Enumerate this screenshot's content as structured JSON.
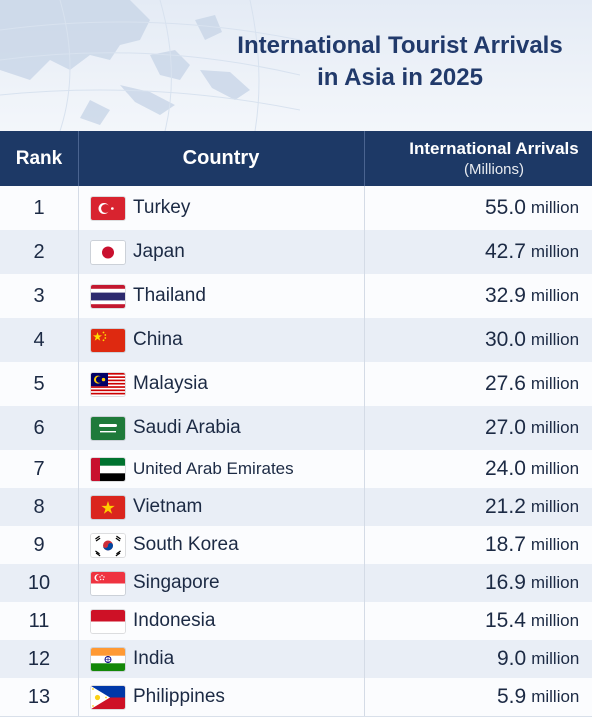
{
  "header": {
    "title_line1": "International Tourist Arrivals",
    "title_line2": "in Asia in 2025"
  },
  "table": {
    "columns": {
      "rank": "Rank",
      "country": "Country",
      "arrivals": "International Arrivals",
      "arrivals_unit": "(Millions)"
    },
    "rows": [
      {
        "rank": "1",
        "country": "Turkey",
        "value": "55.0",
        "unit": "million",
        "flag": "turkey-flag-icon"
      },
      {
        "rank": "2",
        "country": "Japan",
        "value": "42.7",
        "unit": "million",
        "flag": "japan-flag-icon"
      },
      {
        "rank": "3",
        "country": "Thailand",
        "value": "32.9",
        "unit": "million",
        "flag": "thailand-flag-icon"
      },
      {
        "rank": "4",
        "country": "China",
        "value": "30.0",
        "unit": "million",
        "flag": "china-flag-icon"
      },
      {
        "rank": "5",
        "country": "Malaysia",
        "value": "27.6",
        "unit": "million",
        "flag": "malaysia-flag-icon"
      },
      {
        "rank": "6",
        "country": "Saudi Arabia",
        "value": "27.0",
        "unit": "million",
        "flag": "saudi-arabia-flag-icon"
      },
      {
        "rank": "7",
        "country": "United Arab Emirates",
        "value": "24.0",
        "unit": "million",
        "flag": "uae-flag-icon"
      },
      {
        "rank": "8",
        "country": "Vietnam",
        "value": "21.2",
        "unit": "million",
        "flag": "vietnam-flag-icon"
      },
      {
        "rank": "9",
        "country": "South Korea",
        "value": "18.7",
        "unit": "million",
        "flag": "south-korea-flag-icon"
      },
      {
        "rank": "10",
        "country": "Singapore",
        "value": "16.9",
        "unit": "million",
        "flag": "singapore-flag-icon"
      },
      {
        "rank": "11",
        "country": "Indonesia",
        "value": "15.4",
        "unit": "million",
        "flag": "indonesia-flag-icon"
      },
      {
        "rank": "12",
        "country": "India",
        "value": "9.0",
        "unit": "million",
        "flag": "india-flag-icon"
      },
      {
        "rank": "13",
        "country": "Philippines",
        "value": "5.9",
        "unit": "million",
        "flag": "philippines-flag-icon"
      }
    ]
  },
  "colors": {
    "header_bg": "#1d3966",
    "title": "#213a6b",
    "row_alt": "#e9eef6"
  }
}
